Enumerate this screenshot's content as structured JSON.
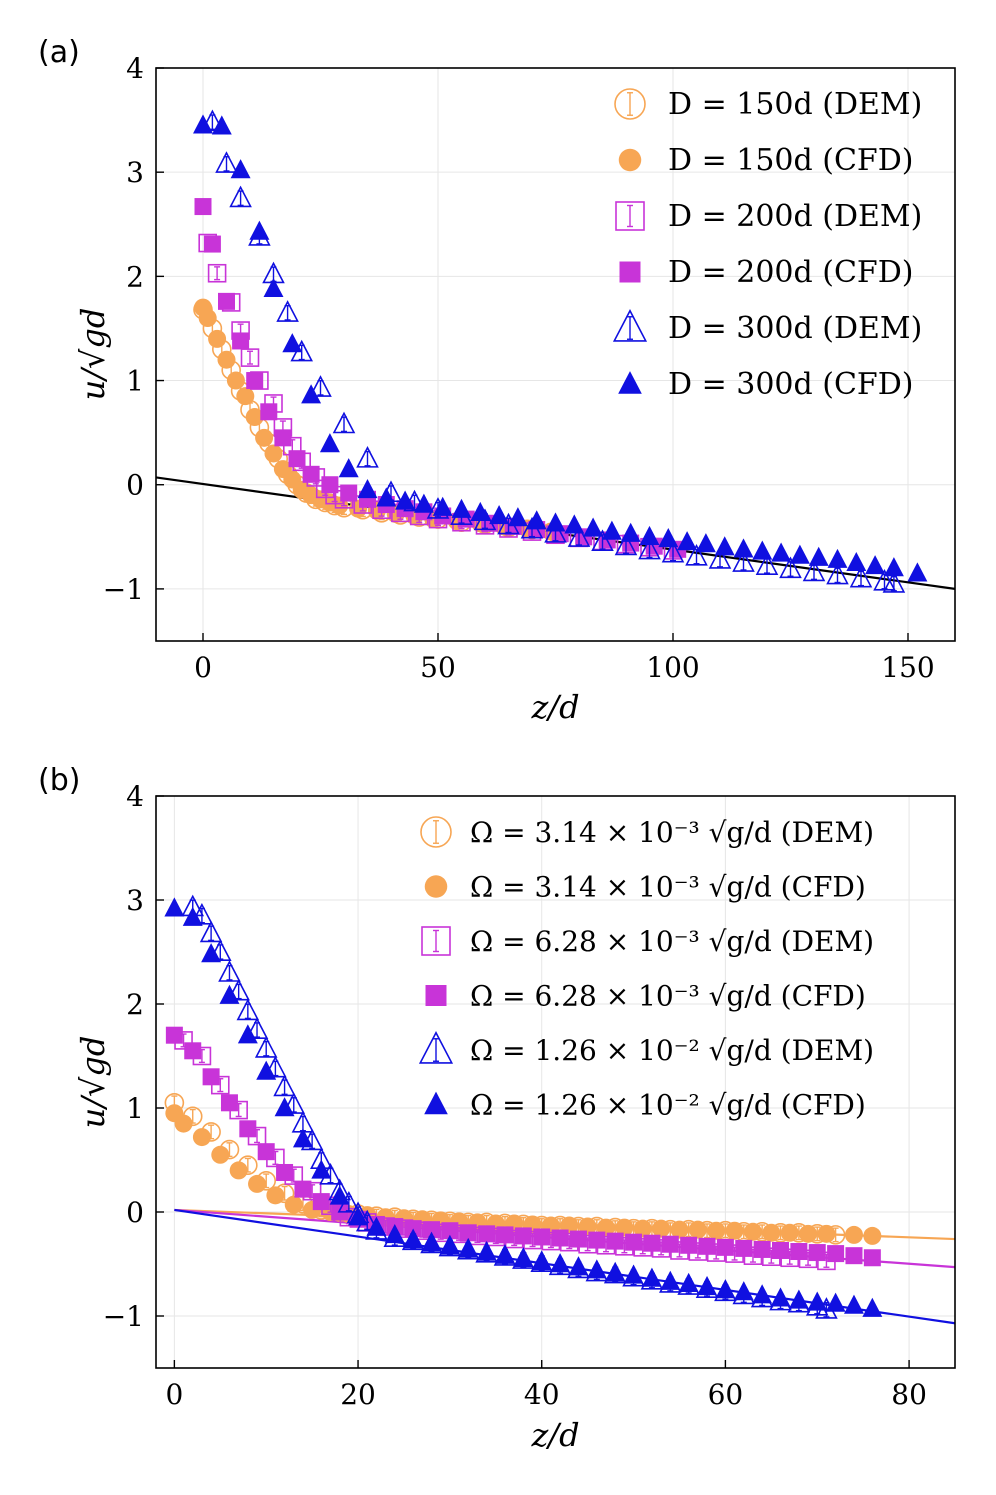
{
  "chart_data": [
    {
      "type": "scatter",
      "panel_label": "(a)",
      "xlabel": "z/d",
      "ylabel": "u/√gd",
      "xlim": [
        -10,
        160
      ],
      "ylim": [
        -1.5,
        4
      ],
      "xticks": [
        0,
        50,
        100,
        150
      ],
      "yticks": [
        4,
        3,
        2,
        1,
        0,
        -1
      ],
      "ytick_labels": [
        "4",
        "3",
        "2",
        "1",
        "0",
        "−1"
      ],
      "grid": true,
      "legend_position": "top-right",
      "reference_lines": [
        {
          "color": "#000000",
          "x": [
            -10,
            160
          ],
          "y": [
            0.07,
            -1.0
          ]
        }
      ],
      "series": [
        {
          "name": "D = 150d (DEM)",
          "marker": "circle-open",
          "color": "#F7A654",
          "x": [
            0,
            2,
            4,
            6,
            8,
            10,
            12,
            14,
            16,
            18,
            20,
            22,
            24,
            26,
            28,
            30,
            34,
            38,
            42,
            46,
            50,
            55,
            60,
            65,
            70,
            75
          ],
          "y": [
            1.68,
            1.5,
            1.3,
            1.1,
            0.9,
            0.72,
            0.55,
            0.4,
            0.25,
            0.1,
            0.0,
            -0.08,
            -0.14,
            -0.17,
            -0.2,
            -0.22,
            -0.24,
            -0.27,
            -0.29,
            -0.31,
            -0.33,
            -0.36,
            -0.38,
            -0.41,
            -0.43,
            -0.46
          ]
        },
        {
          "name": "D = 150d (CFD)",
          "marker": "circle-filled",
          "color": "#F7A654",
          "x": [
            0,
            1,
            3,
            5,
            7,
            9,
            11,
            13,
            15,
            17,
            19,
            21,
            23,
            25,
            27,
            29,
            33,
            37,
            41,
            45,
            49,
            54,
            59,
            64,
            69,
            74
          ],
          "y": [
            1.7,
            1.6,
            1.4,
            1.2,
            1.0,
            0.85,
            0.65,
            0.45,
            0.3,
            0.15,
            0.05,
            -0.05,
            -0.1,
            -0.14,
            -0.17,
            -0.2,
            -0.23,
            -0.25,
            -0.28,
            -0.3,
            -0.33,
            -0.35,
            -0.37,
            -0.4,
            -0.42,
            -0.45
          ]
        },
        {
          "name": "D = 200d (DEM)",
          "marker": "square-open",
          "color": "#C834D8",
          "x": [
            1,
            3,
            6,
            8,
            10,
            12,
            15,
            17,
            19,
            21,
            24,
            26,
            28,
            30,
            34,
            38,
            42,
            46,
            50,
            55,
            60,
            65,
            70,
            75,
            80,
            85,
            90,
            95,
            100
          ],
          "y": [
            2.32,
            2.03,
            1.75,
            1.48,
            1.22,
            1.0,
            0.78,
            0.55,
            0.37,
            0.22,
            0.07,
            -0.04,
            -0.1,
            -0.14,
            -0.19,
            -0.24,
            -0.27,
            -0.3,
            -0.33,
            -0.36,
            -0.39,
            -0.42,
            -0.45,
            -0.48,
            -0.51,
            -0.54,
            -0.57,
            -0.6,
            -0.63
          ]
        },
        {
          "name": "D = 200d (CFD)",
          "marker": "square-filled",
          "color": "#C834D8",
          "x": [
            0,
            2,
            5,
            8,
            11,
            14,
            17,
            20,
            23,
            27,
            31,
            35,
            39,
            43,
            47,
            51,
            56,
            61,
            66,
            71,
            76,
            81,
            86,
            91,
            96,
            101
          ],
          "y": [
            2.67,
            2.31,
            1.76,
            1.38,
            1.0,
            0.7,
            0.45,
            0.25,
            0.1,
            0.0,
            -0.08,
            -0.14,
            -0.19,
            -0.23,
            -0.26,
            -0.3,
            -0.33,
            -0.37,
            -0.4,
            -0.43,
            -0.47,
            -0.5,
            -0.53,
            -0.56,
            -0.59,
            -0.62
          ]
        },
        {
          "name": "D = 300d (DEM)",
          "marker": "triangle-open",
          "color": "#1010E0",
          "x": [
            2,
            5,
            8,
            12,
            15,
            18,
            21,
            25,
            30,
            35,
            40,
            45,
            50,
            55,
            60,
            65,
            70,
            75,
            80,
            85,
            90,
            95,
            100,
            105,
            110,
            115,
            120,
            125,
            130,
            135,
            140,
            145,
            147
          ],
          "y": [
            3.48,
            3.08,
            2.75,
            2.38,
            2.02,
            1.65,
            1.27,
            0.93,
            0.58,
            0.25,
            -0.08,
            -0.17,
            -0.24,
            -0.3,
            -0.35,
            -0.39,
            -0.43,
            -0.47,
            -0.51,
            -0.55,
            -0.59,
            -0.63,
            -0.66,
            -0.69,
            -0.72,
            -0.75,
            -0.78,
            -0.81,
            -0.84,
            -0.87,
            -0.9,
            -0.93,
            -0.95
          ]
        },
        {
          "name": "D = 300d (CFD)",
          "marker": "triangle-filled",
          "color": "#1010E0",
          "x": [
            0,
            4,
            8,
            12,
            15,
            19,
            23,
            27,
            31,
            35,
            39,
            43,
            47,
            51,
            55,
            59,
            63,
            67,
            71,
            75,
            79,
            83,
            87,
            91,
            95,
            99,
            103,
            107,
            111,
            115,
            119,
            123,
            127,
            131,
            135,
            139,
            143,
            147,
            152
          ],
          "y": [
            3.45,
            3.44,
            3.02,
            2.43,
            1.88,
            1.35,
            0.86,
            0.39,
            0.15,
            -0.05,
            -0.13,
            -0.16,
            -0.19,
            -0.22,
            -0.24,
            -0.27,
            -0.3,
            -0.32,
            -0.35,
            -0.37,
            -0.39,
            -0.42,
            -0.45,
            -0.47,
            -0.5,
            -0.52,
            -0.55,
            -0.57,
            -0.6,
            -0.62,
            -0.64,
            -0.66,
            -0.68,
            -0.7,
            -0.72,
            -0.75,
            -0.78,
            -0.8,
            -0.85
          ]
        }
      ]
    },
    {
      "type": "scatter",
      "panel_label": "(b)",
      "xlabel": "z/d",
      "ylabel": "u/√gd",
      "xlim": [
        -2,
        85
      ],
      "ylim": [
        -1.5,
        4
      ],
      "xticks": [
        0,
        20,
        40,
        60,
        80
      ],
      "yticks": [
        4,
        3,
        2,
        1,
        0,
        -1
      ],
      "ytick_labels": [
        "4",
        "3",
        "2",
        "1",
        "0",
        "−1"
      ],
      "grid": true,
      "legend_position": "top-right",
      "reference_lines": [
        {
          "color": "#F7A654",
          "x": [
            0,
            85
          ],
          "y": [
            0.02,
            -0.26
          ]
        },
        {
          "color": "#C834D8",
          "x": [
            0,
            85
          ],
          "y": [
            0.02,
            -0.53
          ]
        },
        {
          "color": "#1010E0",
          "x": [
            0,
            85
          ],
          "y": [
            0.02,
            -1.07
          ]
        }
      ],
      "series": [
        {
          "name": "Ω = 3.14 × 10⁻³ √g/d (DEM)",
          "marker": "circle-open",
          "color": "#F7A654",
          "x": [
            0,
            2,
            4,
            6,
            8,
            10,
            12,
            14,
            16,
            18,
            20,
            22,
            24,
            26,
            28,
            30,
            32,
            34,
            36,
            38,
            40,
            42,
            44,
            46,
            48,
            50,
            52,
            54,
            56,
            58,
            60,
            62,
            64,
            66,
            68,
            70,
            72
          ],
          "y": [
            1.05,
            0.92,
            0.77,
            0.6,
            0.45,
            0.3,
            0.18,
            0.08,
            0.02,
            0.0,
            -0.02,
            -0.04,
            -0.05,
            -0.07,
            -0.08,
            -0.09,
            -0.1,
            -0.1,
            -0.11,
            -0.12,
            -0.13,
            -0.13,
            -0.14,
            -0.14,
            -0.15,
            -0.16,
            -0.16,
            -0.17,
            -0.17,
            -0.18,
            -0.18,
            -0.19,
            -0.19,
            -0.2,
            -0.2,
            -0.21,
            -0.22
          ]
        },
        {
          "name": "Ω = 3.14 × 10⁻³ √g/d (CFD)",
          "marker": "circle-filled",
          "color": "#F7A654",
          "x": [
            0,
            1,
            3,
            5,
            7,
            9,
            11,
            13,
            15,
            17,
            19,
            21,
            23,
            25,
            27,
            29,
            31,
            33,
            35,
            37,
            39,
            41,
            43,
            45,
            47,
            49,
            51,
            53,
            55,
            57,
            59,
            61,
            63,
            65,
            67,
            69,
            71,
            74,
            76
          ],
          "y": [
            0.95,
            0.85,
            0.72,
            0.55,
            0.4,
            0.27,
            0.16,
            0.07,
            0.02,
            0.0,
            -0.02,
            -0.03,
            -0.05,
            -0.06,
            -0.07,
            -0.08,
            -0.09,
            -0.1,
            -0.11,
            -0.11,
            -0.12,
            -0.13,
            -0.13,
            -0.14,
            -0.15,
            -0.15,
            -0.16,
            -0.16,
            -0.17,
            -0.17,
            -0.18,
            -0.18,
            -0.19,
            -0.2,
            -0.2,
            -0.21,
            -0.21,
            -0.22,
            -0.23
          ]
        },
        {
          "name": "Ω = 6.28 × 10⁻³ √g/d (DEM)",
          "marker": "square-open",
          "color": "#C834D8",
          "x": [
            1,
            3,
            5,
            7,
            9,
            11,
            13,
            15,
            17,
            19,
            21,
            23,
            25,
            27,
            29,
            31,
            33,
            35,
            37,
            39,
            41,
            43,
            45,
            47,
            49,
            51,
            53,
            55,
            57,
            59,
            61,
            63,
            65,
            67,
            69,
            71
          ],
          "y": [
            1.65,
            1.5,
            1.22,
            0.98,
            0.73,
            0.52,
            0.35,
            0.2,
            0.06,
            -0.05,
            -0.1,
            -0.14,
            -0.16,
            -0.18,
            -0.2,
            -0.21,
            -0.23,
            -0.24,
            -0.26,
            -0.27,
            -0.28,
            -0.29,
            -0.31,
            -0.32,
            -0.33,
            -0.34,
            -0.35,
            -0.37,
            -0.38,
            -0.39,
            -0.4,
            -0.42,
            -0.43,
            -0.44,
            -0.45,
            -0.47
          ]
        },
        {
          "name": "Ω = 6.28 × 10⁻³ √g/d (CFD)",
          "marker": "square-filled",
          "color": "#C834D8",
          "x": [
            0,
            2,
            4,
            6,
            8,
            10,
            12,
            14,
            16,
            18,
            20,
            22,
            24,
            26,
            28,
            30,
            32,
            34,
            36,
            38,
            40,
            42,
            44,
            46,
            48,
            50,
            52,
            54,
            56,
            58,
            60,
            62,
            64,
            66,
            68,
            70,
            72,
            74,
            76
          ],
          "y": [
            1.7,
            1.55,
            1.3,
            1.05,
            0.8,
            0.58,
            0.38,
            0.22,
            0.1,
            0.0,
            -0.07,
            -0.12,
            -0.14,
            -0.16,
            -0.17,
            -0.18,
            -0.2,
            -0.21,
            -0.22,
            -0.23,
            -0.24,
            -0.25,
            -0.26,
            -0.27,
            -0.28,
            -0.29,
            -0.3,
            -0.31,
            -0.32,
            -0.33,
            -0.34,
            -0.35,
            -0.36,
            -0.37,
            -0.38,
            -0.39,
            -0.4,
            -0.42,
            -0.44
          ]
        },
        {
          "name": "Ω = 1.26 × 10⁻² √g/d (DEM)",
          "marker": "triangle-open",
          "color": "#1010E0",
          "x": [
            2,
            3,
            4,
            5,
            6,
            7,
            8,
            9,
            10,
            11,
            12,
            13,
            14,
            15,
            16,
            17,
            18,
            19,
            20,
            21,
            22,
            24,
            26,
            28,
            30,
            32,
            34,
            36,
            38,
            40,
            42,
            44,
            46,
            48,
            50,
            52,
            54,
            56,
            58,
            60,
            62,
            64,
            66,
            68,
            70,
            71
          ],
          "y": [
            2.93,
            2.85,
            2.68,
            2.5,
            2.3,
            2.12,
            1.93,
            1.75,
            1.57,
            1.38,
            1.2,
            1.03,
            0.85,
            0.68,
            0.5,
            0.35,
            0.2,
            0.08,
            -0.02,
            -0.1,
            -0.18,
            -0.25,
            -0.28,
            -0.31,
            -0.34,
            -0.37,
            -0.4,
            -0.43,
            -0.46,
            -0.49,
            -0.52,
            -0.55,
            -0.58,
            -0.6,
            -0.63,
            -0.66,
            -0.69,
            -0.71,
            -0.74,
            -0.77,
            -0.8,
            -0.83,
            -0.86,
            -0.88,
            -0.91,
            -0.94
          ]
        },
        {
          "name": "Ω = 1.26 × 10⁻² √g/d (CFD)",
          "marker": "triangle-filled",
          "color": "#1010E0",
          "x": [
            0,
            2,
            4,
            6,
            8,
            10,
            12,
            14,
            16,
            18,
            20,
            22,
            24,
            26,
            28,
            30,
            32,
            34,
            36,
            38,
            40,
            42,
            44,
            46,
            48,
            50,
            52,
            54,
            56,
            58,
            60,
            62,
            64,
            66,
            68,
            70,
            72,
            74,
            76
          ],
          "y": [
            2.92,
            2.83,
            2.48,
            2.08,
            1.7,
            1.35,
            1.0,
            0.7,
            0.4,
            0.15,
            -0.05,
            -0.15,
            -0.22,
            -0.27,
            -0.3,
            -0.33,
            -0.36,
            -0.39,
            -0.42,
            -0.45,
            -0.48,
            -0.5,
            -0.53,
            -0.56,
            -0.59,
            -0.61,
            -0.64,
            -0.67,
            -0.69,
            -0.72,
            -0.75,
            -0.77,
            -0.8,
            -0.83,
            -0.85,
            -0.87,
            -0.88,
            -0.9,
            -0.93
          ]
        }
      ]
    }
  ]
}
